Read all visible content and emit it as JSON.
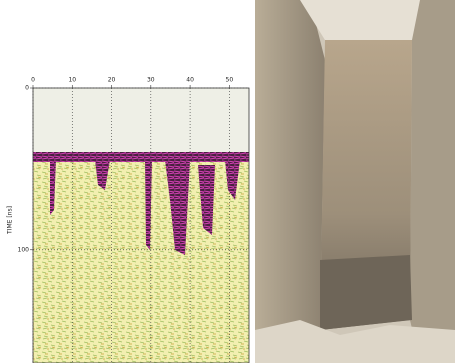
{
  "chart_data": {
    "type": "radargram",
    "y_label": "TIME [ns]",
    "xlim": [
      0,
      55
    ],
    "xticks": [
      0,
      10,
      20,
      30,
      40,
      50
    ],
    "ylim": [
      0,
      170
    ],
    "yticks": [
      0,
      100
    ],
    "grid": true
  }
}
